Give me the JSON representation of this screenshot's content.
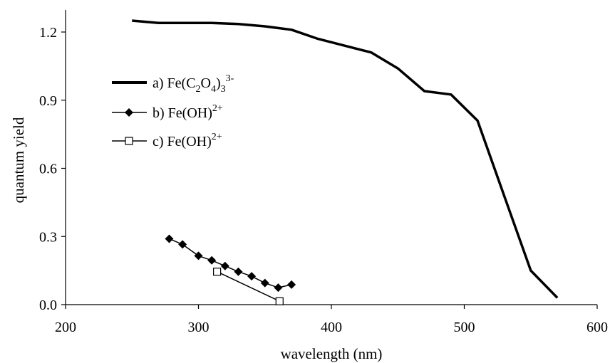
{
  "chart_data": {
    "type": "line",
    "title": "",
    "xlabel": "wavelength (nm)",
    "ylabel": "quantum yield",
    "xlim": [
      200,
      600
    ],
    "ylim": [
      0.0,
      1.3
    ],
    "xticks": [
      "200",
      "300",
      "400",
      "500",
      "600"
    ],
    "yticks": [
      "0.0",
      "0.3",
      "0.6",
      "0.9",
      "1.2"
    ],
    "grid": false,
    "legend_position": "top-left",
    "series": [
      {
        "name": "a) Fe(C2O4)3 3-",
        "legend": {
          "prefix": "a) Fe(C",
          "sub1": "2",
          "mid": "O",
          "sub2": "4",
          "close": ")",
          "sub3": "3",
          "sup": "3-"
        },
        "marker": "none",
        "color": "#000000",
        "x": [
          250,
          270,
          310,
          330,
          350,
          370,
          390,
          410,
          430,
          450,
          470,
          490,
          510,
          530,
          550,
          570
        ],
        "y": [
          1.25,
          1.24,
          1.24,
          1.235,
          1.225,
          1.21,
          1.17,
          1.14,
          1.11,
          1.04,
          0.94,
          0.925,
          0.81,
          0.48,
          0.15,
          0.03
        ]
      },
      {
        "name": "b) Fe(OH)2+",
        "legend": {
          "prefix": "b) Fe(OH)",
          "sup": "2+"
        },
        "marker": "filled-diamond",
        "color": "#000000",
        "x": [
          278,
          288,
          300,
          310,
          320,
          330,
          340,
          350,
          360,
          370
        ],
        "y": [
          0.29,
          0.265,
          0.215,
          0.195,
          0.17,
          0.145,
          0.125,
          0.095,
          0.075,
          0.088
        ]
      },
      {
        "name": "c) Fe(OH)2+",
        "legend": {
          "prefix": "c) Fe(OH)",
          "sup": "2+"
        },
        "marker": "open-square",
        "color": "#000000",
        "x": [
          314,
          361
        ],
        "y": [
          0.145,
          0.015
        ]
      }
    ]
  }
}
